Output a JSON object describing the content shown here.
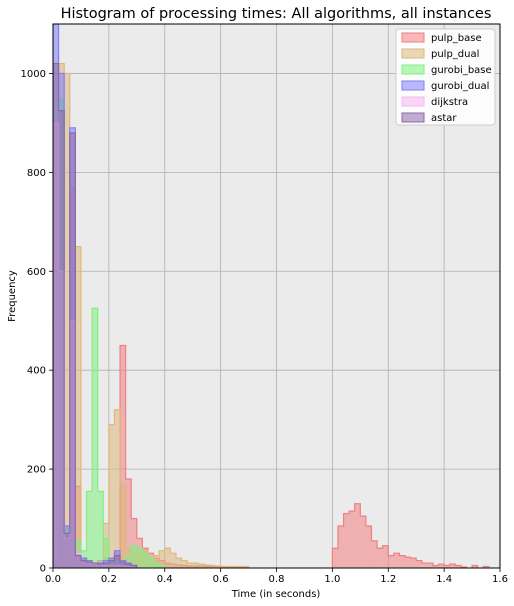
{
  "chart_data": {
    "type": "histogram",
    "title": "Histogram of processing times: All algorithms, all instances",
    "xlabel": "Time (in seconds)",
    "ylabel": "Frequency",
    "xlim": [
      0,
      1.6
    ],
    "ylim": [
      0,
      1100
    ],
    "xticks": [
      "0.0",
      "0.2",
      "0.4",
      "0.6",
      "0.8",
      "1.0",
      "1.2",
      "1.4",
      "1.6"
    ],
    "yticks": [
      "0",
      "200",
      "400",
      "600",
      "800",
      "1000"
    ],
    "grid": true,
    "legend_position": "top-right",
    "series": [
      {
        "name": "pulp_base",
        "color": "#f08080",
        "bins": [
          [
            0.0,
            0.02,
            15
          ],
          [
            0.02,
            0.04,
            950
          ],
          [
            0.04,
            0.06,
            80
          ],
          [
            0.06,
            0.08,
            10
          ],
          [
            0.08,
            0.1,
            165
          ],
          [
            0.1,
            0.12,
            20
          ],
          [
            0.12,
            0.14,
            15
          ],
          [
            0.14,
            0.16,
            10
          ],
          [
            0.16,
            0.18,
            15
          ],
          [
            0.18,
            0.2,
            20
          ],
          [
            0.2,
            0.22,
            15
          ],
          [
            0.22,
            0.24,
            30
          ],
          [
            0.24,
            0.26,
            450
          ],
          [
            0.26,
            0.28,
            180
          ],
          [
            0.28,
            0.3,
            100
          ],
          [
            0.3,
            0.32,
            60
          ],
          [
            0.32,
            0.34,
            40
          ],
          [
            0.34,
            0.36,
            30
          ],
          [
            0.36,
            0.38,
            20
          ],
          [
            0.38,
            0.4,
            15
          ],
          [
            0.4,
            0.42,
            10
          ],
          [
            0.42,
            0.44,
            8
          ],
          [
            0.44,
            0.46,
            6
          ],
          [
            0.46,
            0.48,
            5
          ],
          [
            0.48,
            0.5,
            4
          ],
          [
            0.5,
            0.55,
            4
          ],
          [
            0.55,
            0.6,
            3
          ],
          [
            0.6,
            0.7,
            2
          ],
          [
            1.0,
            1.02,
            40
          ],
          [
            1.02,
            1.04,
            85
          ],
          [
            1.04,
            1.06,
            110
          ],
          [
            1.06,
            1.08,
            115
          ],
          [
            1.08,
            1.1,
            130
          ],
          [
            1.1,
            1.12,
            105
          ],
          [
            1.12,
            1.14,
            85
          ],
          [
            1.14,
            1.16,
            55
          ],
          [
            1.16,
            1.18,
            40
          ],
          [
            1.18,
            1.2,
            45
          ],
          [
            1.2,
            1.22,
            25
          ],
          [
            1.22,
            1.24,
            30
          ],
          [
            1.24,
            1.26,
            25
          ],
          [
            1.26,
            1.28,
            22
          ],
          [
            1.28,
            1.3,
            20
          ],
          [
            1.3,
            1.32,
            15
          ],
          [
            1.32,
            1.34,
            10
          ],
          [
            1.34,
            1.36,
            10
          ],
          [
            1.36,
            1.38,
            5
          ],
          [
            1.38,
            1.4,
            8
          ],
          [
            1.4,
            1.42,
            5
          ],
          [
            1.42,
            1.44,
            8
          ],
          [
            1.44,
            1.46,
            5
          ],
          [
            1.46,
            1.48,
            2
          ],
          [
            1.5,
            1.52,
            5
          ],
          [
            1.54,
            1.56,
            3
          ]
        ]
      },
      {
        "name": "pulp_dual",
        "color": "#ddb87c",
        "bins": [
          [
            0.0,
            0.02,
            15
          ],
          [
            0.02,
            0.04,
            1020
          ],
          [
            0.04,
            0.06,
            1000
          ],
          [
            0.06,
            0.08,
            770
          ],
          [
            0.08,
            0.1,
            650
          ],
          [
            0.1,
            0.12,
            15
          ],
          [
            0.12,
            0.14,
            10
          ],
          [
            0.14,
            0.16,
            8
          ],
          [
            0.16,
            0.18,
            10
          ],
          [
            0.18,
            0.2,
            90
          ],
          [
            0.2,
            0.22,
            290
          ],
          [
            0.22,
            0.24,
            320
          ],
          [
            0.24,
            0.26,
            170
          ],
          [
            0.26,
            0.28,
            40
          ],
          [
            0.28,
            0.3,
            25
          ],
          [
            0.3,
            0.32,
            30
          ],
          [
            0.32,
            0.34,
            35
          ],
          [
            0.34,
            0.36,
            20
          ],
          [
            0.36,
            0.38,
            25
          ],
          [
            0.38,
            0.4,
            35
          ],
          [
            0.4,
            0.42,
            40
          ],
          [
            0.42,
            0.44,
            30
          ],
          [
            0.44,
            0.46,
            20
          ],
          [
            0.46,
            0.48,
            15
          ],
          [
            0.48,
            0.5,
            10
          ],
          [
            0.5,
            0.52,
            10
          ],
          [
            0.52,
            0.54,
            8
          ],
          [
            0.54,
            0.56,
            6
          ],
          [
            0.56,
            0.58,
            5
          ],
          [
            0.58,
            0.6,
            4
          ],
          [
            0.6,
            0.7,
            3
          ]
        ]
      },
      {
        "name": "gurobi_base",
        "color": "#80f080",
        "bins": [
          [
            0.0,
            0.02,
            15
          ],
          [
            0.02,
            0.04,
            950
          ],
          [
            0.04,
            0.06,
            80
          ],
          [
            0.06,
            0.08,
            10
          ],
          [
            0.08,
            0.1,
            55
          ],
          [
            0.1,
            0.12,
            35
          ],
          [
            0.12,
            0.14,
            155
          ],
          [
            0.14,
            0.16,
            525
          ],
          [
            0.16,
            0.18,
            155
          ],
          [
            0.18,
            0.2,
            60
          ],
          [
            0.2,
            0.22,
            20
          ],
          [
            0.22,
            0.24,
            15
          ],
          [
            0.24,
            0.26,
            10
          ],
          [
            0.26,
            0.28,
            25
          ],
          [
            0.28,
            0.3,
            45
          ],
          [
            0.3,
            0.32,
            40
          ],
          [
            0.32,
            0.34,
            30
          ],
          [
            0.34,
            0.36,
            20
          ],
          [
            0.36,
            0.38,
            10
          ],
          [
            0.38,
            0.4,
            5
          ]
        ]
      },
      {
        "name": "gurobi_dual",
        "color": "#7f7ff8",
        "bins": [
          [
            0.0,
            0.02,
            1100
          ],
          [
            0.02,
            0.04,
            1000
          ],
          [
            0.04,
            0.06,
            85
          ],
          [
            0.06,
            0.08,
            890
          ],
          [
            0.08,
            0.1,
            30
          ],
          [
            0.1,
            0.12,
            20
          ],
          [
            0.12,
            0.14,
            15
          ],
          [
            0.14,
            0.16,
            10
          ],
          [
            0.16,
            0.18,
            10
          ],
          [
            0.18,
            0.2,
            15
          ],
          [
            0.2,
            0.22,
            20
          ],
          [
            0.22,
            0.24,
            35
          ],
          [
            0.24,
            0.26,
            15
          ],
          [
            0.26,
            0.28,
            10
          ],
          [
            0.28,
            0.3,
            5
          ]
        ]
      },
      {
        "name": "dijkstra",
        "color": "#f4b8f0",
        "bins": [
          [
            0.0,
            0.02,
            900
          ],
          [
            0.02,
            0.04,
            600
          ],
          [
            0.04,
            0.06,
            60
          ],
          [
            0.06,
            0.08,
            500
          ],
          [
            0.08,
            0.1,
            30
          ],
          [
            0.1,
            0.12,
            15
          ],
          [
            0.12,
            0.14,
            10
          ],
          [
            0.14,
            0.16,
            8
          ],
          [
            0.16,
            0.18,
            6
          ],
          [
            0.18,
            0.2,
            5
          ],
          [
            0.2,
            0.22,
            5
          ],
          [
            0.22,
            0.24,
            5
          ],
          [
            0.24,
            0.26,
            4
          ],
          [
            0.26,
            0.28,
            3
          ],
          [
            0.28,
            0.3,
            2
          ]
        ]
      },
      {
        "name": "astar",
        "color": "#8c6aa8",
        "bins": [
          [
            0.0,
            0.02,
            1020
          ],
          [
            0.02,
            0.04,
            925
          ],
          [
            0.04,
            0.06,
            70
          ],
          [
            0.06,
            0.08,
            880
          ],
          [
            0.08,
            0.1,
            25
          ],
          [
            0.1,
            0.12,
            15
          ],
          [
            0.12,
            0.14,
            12
          ],
          [
            0.14,
            0.16,
            10
          ],
          [
            0.16,
            0.18,
            8
          ],
          [
            0.18,
            0.2,
            10
          ],
          [
            0.2,
            0.22,
            15
          ],
          [
            0.22,
            0.24,
            25
          ],
          [
            0.24,
            0.26,
            12
          ],
          [
            0.26,
            0.28,
            8
          ],
          [
            0.28,
            0.3,
            5
          ]
        ]
      }
    ]
  }
}
